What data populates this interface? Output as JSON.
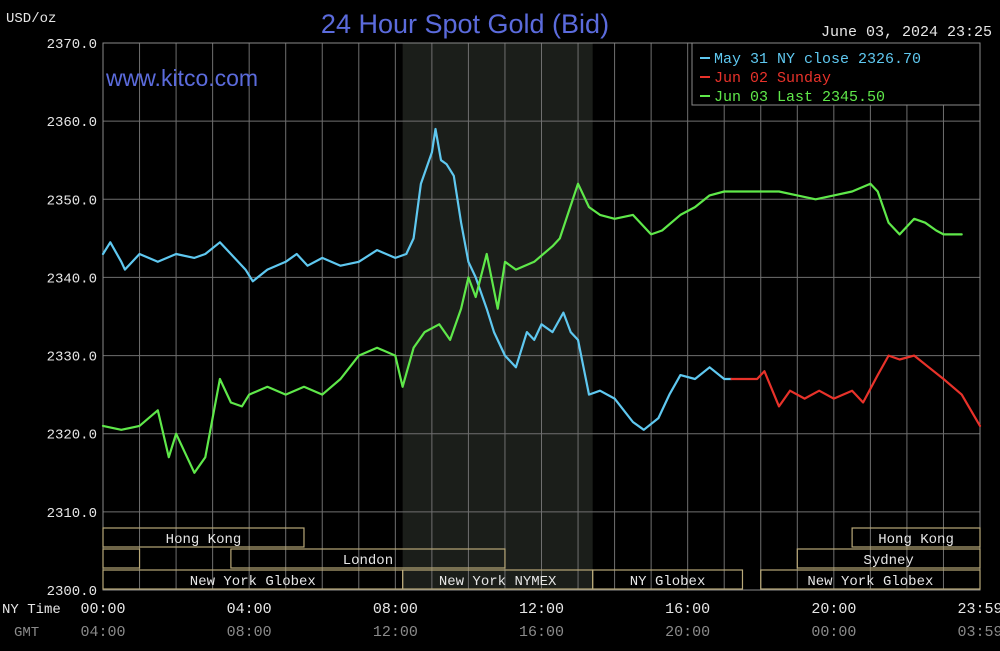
{
  "chart_data": {
    "type": "line",
    "title": "24 Hour Spot Gold (Bid)",
    "unit_label": "USD/oz",
    "watermark": "www.kitco.com",
    "timestamp": "June 03, 2024 23:25",
    "ylim": [
      2300,
      2370
    ],
    "y_ticks": [
      "2370.0",
      "2360.0",
      "2350.0",
      "2340.0",
      "2330.0",
      "2320.0",
      "2310.0",
      "2300.0"
    ],
    "x_range_hours": [
      0,
      24
    ],
    "x_ticks_ny": [
      "00:00",
      "04:00",
      "08:00",
      "12:00",
      "16:00",
      "20:00",
      "23:59"
    ],
    "x_ticks_gmt": [
      "04:00",
      "08:00",
      "12:00",
      "16:00",
      "20:00",
      "00:00",
      "03:59"
    ],
    "x_label_ny": "NY Time",
    "x_label_gmt": "GMT",
    "shaded_session_hours": [
      8.2,
      13.4
    ],
    "legend": {
      "position": "top-right",
      "entries": [
        {
          "label": "May 31 NY close 2326.70",
          "color": "#5fc8f0"
        },
        {
          "label": "Jun 02 Sunday",
          "color": "#e8322a"
        },
        {
          "label": "Jun 03 Last 2345.50",
          "color": "#5fe84a"
        }
      ]
    },
    "sessions": [
      {
        "label": "Hong Kong",
        "start": 0,
        "end": 5.5,
        "row": 0
      },
      {
        "label": "Hong Kong",
        "start": 20.5,
        "end": 24,
        "row": 0
      },
      {
        "label": "",
        "start": 0,
        "end": 1,
        "row": 1
      },
      {
        "label": "London",
        "start": 3.5,
        "end": 11,
        "row": 1
      },
      {
        "label": "Sydney",
        "start": 19,
        "end": 24,
        "row": 1
      },
      {
        "label": "New York Globex",
        "start": 0,
        "end": 8.2,
        "row": 2
      },
      {
        "label": "New York NYMEX",
        "start": 8.2,
        "end": 13.4,
        "row": 2
      },
      {
        "label": "NY Globex",
        "start": 13.4,
        "end": 17.5,
        "row": 2
      },
      {
        "label": "New York Globex",
        "start": 18,
        "end": 24,
        "row": 2
      }
    ],
    "series": [
      {
        "name": "May 31",
        "color": "#5fc8f0",
        "x": [
          0,
          0.2,
          0.5,
          0.6,
          1.0,
          1.5,
          2.0,
          2.5,
          2.8,
          3.2,
          3.5,
          3.9,
          4.1,
          4.5,
          5.0,
          5.3,
          5.6,
          6.0,
          6.5,
          7.0,
          7.5,
          8.0,
          8.3,
          8.5,
          8.7,
          9.0,
          9.1,
          9.25,
          9.4,
          9.6,
          9.8,
          10.0,
          10.2,
          10.5,
          10.7,
          11.0,
          11.3,
          11.6,
          11.8,
          12.0,
          12.3,
          12.6,
          12.8,
          13.0,
          13.3,
          13.6,
          14.0,
          14.5,
          14.8,
          15.2,
          15.5,
          15.8,
          16.2,
          16.6,
          17.0,
          17.2
        ],
        "y": [
          2343,
          2344.5,
          2342,
          2341,
          2343,
          2342,
          2343,
          2342.5,
          2343,
          2344.5,
          2343,
          2341,
          2339.5,
          2341,
          2342,
          2343,
          2341.5,
          2342.5,
          2341.5,
          2342,
          2343.5,
          2342.5,
          2343,
          2345,
          2352,
          2356,
          2359,
          2355,
          2354.5,
          2353,
          2347,
          2342,
          2340,
          2336,
          2333,
          2330,
          2328.5,
          2333,
          2332,
          2334,
          2333,
          2335.5,
          2333,
          2332,
          2325,
          2325.5,
          2324.5,
          2321.5,
          2320.5,
          2322,
          2325,
          2327.5,
          2327,
          2328.5,
          2327,
          2327
        ]
      },
      {
        "name": "Jun 02",
        "color": "#e8322a",
        "x": [
          17.2,
          17.9,
          18.1,
          18.5,
          18.8,
          19.2,
          19.6,
          20.0,
          20.5,
          20.8,
          21.2,
          21.5,
          21.8,
          22.2,
          22.6,
          23.0,
          23.5,
          24.0
        ],
        "y": [
          2327,
          2327,
          2328,
          2323.5,
          2325.5,
          2324.5,
          2325.5,
          2324.5,
          2325.5,
          2324,
          2327.5,
          2330,
          2329.5,
          2330,
          2328.5,
          2327,
          2325,
          2321
        ]
      },
      {
        "name": "Jun 03",
        "color": "#5fe84a",
        "x": [
          0,
          0.5,
          1.0,
          1.5,
          1.8,
          2.0,
          2.2,
          2.5,
          2.8,
          3.0,
          3.2,
          3.5,
          3.8,
          4.0,
          4.5,
          5.0,
          5.5,
          6.0,
          6.5,
          7.0,
          7.5,
          8.0,
          8.2,
          8.5,
          8.8,
          9.2,
          9.5,
          9.8,
          10.0,
          10.2,
          10.5,
          10.8,
          11.0,
          11.3,
          11.8,
          12.3,
          12.5,
          13.0,
          13.3,
          13.6,
          14.0,
          14.5,
          15.0,
          15.3,
          15.8,
          16.2,
          16.6,
          17.0,
          17.5,
          18.0,
          18.5,
          19.0,
          19.5,
          20.0,
          20.5,
          21.0,
          21.2,
          21.5,
          21.8,
          22.2,
          22.5,
          22.8,
          23.0,
          23.5
        ],
        "y": [
          2321,
          2320.5,
          2321,
          2323,
          2317,
          2320,
          2318,
          2315,
          2317,
          2322,
          2327,
          2324,
          2323.5,
          2325,
          2326,
          2325,
          2326,
          2325,
          2327,
          2330,
          2331,
          2330,
          2326,
          2331,
          2333,
          2334,
          2332,
          2336,
          2340,
          2337.5,
          2343,
          2336,
          2342,
          2341,
          2342,
          2344,
          2345,
          2352,
          2349,
          2348,
          2347.5,
          2348,
          2345.5,
          2346,
          2348,
          2349,
          2350.5,
          2351,
          2351,
          2351,
          2351,
          2350.5,
          2350,
          2350.5,
          2351,
          2352,
          2351,
          2347,
          2345.5,
          2347.5,
          2347,
          2346,
          2345.5,
          2345.5
        ]
      }
    ]
  }
}
